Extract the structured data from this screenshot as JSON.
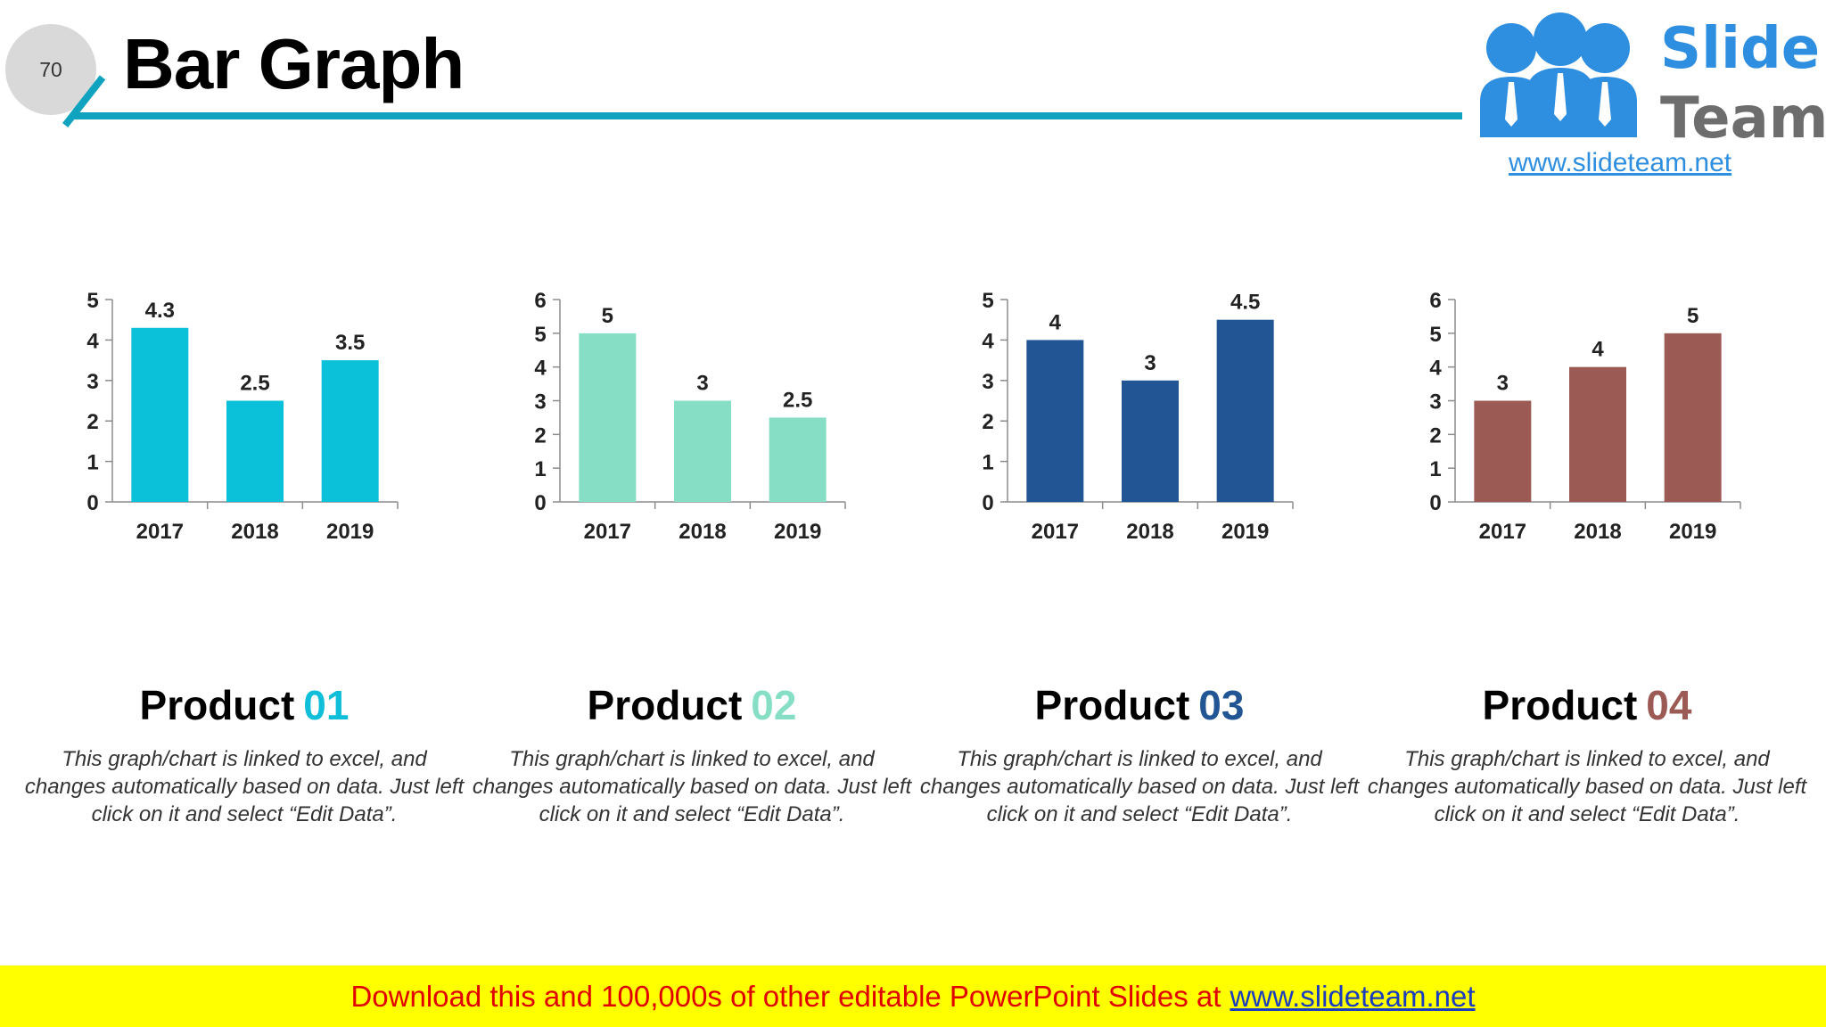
{
  "page_number": "70",
  "title": "Bar Graph",
  "logo": {
    "word1": "Slide",
    "word2": "Team",
    "url": "www.slideteam.net"
  },
  "footer": {
    "text": "Download this and 100,000s of other editable PowerPoint Slides at",
    "link": "www.slideteam.net",
    "text_color": "#e00000",
    "link_color": "#1a3cbf",
    "background": "#ffff00"
  },
  "products": [
    {
      "label": "Product",
      "number": "01",
      "color": "#0fbed8",
      "description": "This graph/chart is linked to excel, and changes automatically based on data. Just left click on it and select “Edit Data”."
    },
    {
      "label": "Product",
      "number": "02",
      "color": "#86dfc4",
      "description": "This graph/chart is linked to excel, and changes automatically based on data. Just left click on it and select “Edit Data”."
    },
    {
      "label": "Product",
      "number": "03",
      "color": "#225593",
      "description": "This graph/chart is linked to excel, and changes automatically based on data. Just left click on it and select “Edit Data”."
    },
    {
      "label": "Product",
      "number": "04",
      "color": "#9c5a55",
      "description": "This graph/chart is linked to excel, and changes automatically based on data. Just left click on it and select “Edit Data”."
    }
  ],
  "chart_data": [
    {
      "type": "bar",
      "categories": [
        "2017",
        "2018",
        "2019"
      ],
      "values": [
        4.3,
        2.5,
        3.5
      ],
      "ylim": [
        0,
        5
      ],
      "yticks": [
        0,
        1,
        2,
        3,
        4,
        5
      ],
      "color": "#0bc0d9",
      "grid": false,
      "data_labels": true
    },
    {
      "type": "bar",
      "categories": [
        "2017",
        "2018",
        "2019"
      ],
      "values": [
        5,
        3,
        2.5
      ],
      "ylim": [
        0,
        6
      ],
      "yticks": [
        0,
        1,
        2,
        3,
        4,
        5,
        6
      ],
      "color": "#86dfc4",
      "grid": false,
      "data_labels": true
    },
    {
      "type": "bar",
      "categories": [
        "2017",
        "2018",
        "2019"
      ],
      "values": [
        4,
        3,
        4.5
      ],
      "ylim": [
        0,
        5
      ],
      "yticks": [
        0,
        1,
        2,
        3,
        4,
        5
      ],
      "color": "#225593",
      "grid": false,
      "data_labels": true
    },
    {
      "type": "bar",
      "categories": [
        "2017",
        "2018",
        "2019"
      ],
      "values": [
        3,
        4,
        5
      ],
      "ylim": [
        0,
        6
      ],
      "yticks": [
        0,
        1,
        2,
        3,
        4,
        5,
        6
      ],
      "color": "#9c5a55",
      "grid": false,
      "data_labels": true
    }
  ]
}
